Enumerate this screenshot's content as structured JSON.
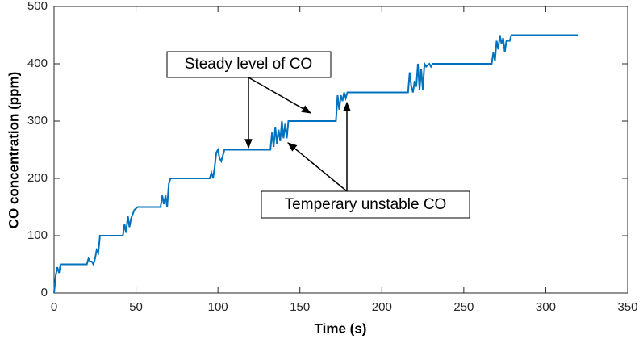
{
  "chart_data": {
    "type": "line",
    "xlabel": "Time (s)",
    "ylabel": "CO concentration (ppm)",
    "x": [
      0,
      1,
      2,
      3,
      4,
      20,
      21,
      22,
      23,
      24,
      25,
      26,
      27,
      28,
      42,
      43,
      44,
      45,
      46,
      47,
      49,
      51,
      65,
      66,
      67,
      68,
      69,
      70,
      71,
      95,
      96,
      97,
      98,
      99,
      100,
      101,
      102,
      104,
      132,
      133,
      134,
      135,
      136,
      137,
      138,
      139,
      140,
      141,
      142,
      143,
      172,
      173,
      174,
      175,
      176,
      177,
      178,
      179,
      216,
      217,
      218,
      219,
      220,
      221,
      222,
      223,
      224,
      225,
      226,
      227,
      229,
      230,
      231,
      267,
      268,
      269,
      270,
      271,
      272,
      273,
      274,
      275,
      276,
      278,
      279,
      320
    ],
    "values": [
      0,
      30,
      45,
      35,
      50,
      50,
      60,
      55,
      55,
      50,
      60,
      75,
      70,
      100,
      100,
      120,
      105,
      135,
      115,
      130,
      145,
      150,
      150,
      170,
      155,
      170,
      150,
      190,
      200,
      200,
      210,
      200,
      220,
      245,
      250,
      235,
      230,
      250,
      250,
      280,
      255,
      290,
      260,
      285,
      265,
      300,
      270,
      295,
      270,
      300,
      300,
      345,
      320,
      345,
      335,
      350,
      340,
      350,
      350,
      385,
      360,
      350,
      370,
      360,
      400,
      355,
      390,
      355,
      400,
      395,
      400,
      395,
      400,
      400,
      420,
      405,
      440,
      425,
      450,
      435,
      445,
      420,
      440,
      440,
      450,
      450
    ],
    "color": "#0072bd",
    "xlim": [
      0,
      350
    ],
    "xticks": [
      0,
      50,
      100,
      150,
      200,
      250,
      300,
      350
    ],
    "ylim": [
      0,
      500
    ],
    "yticks": [
      0,
      100,
      200,
      300,
      400,
      500
    ],
    "annotations": [
      "Steady level of CO",
      "Temperary unstable CO"
    ]
  }
}
